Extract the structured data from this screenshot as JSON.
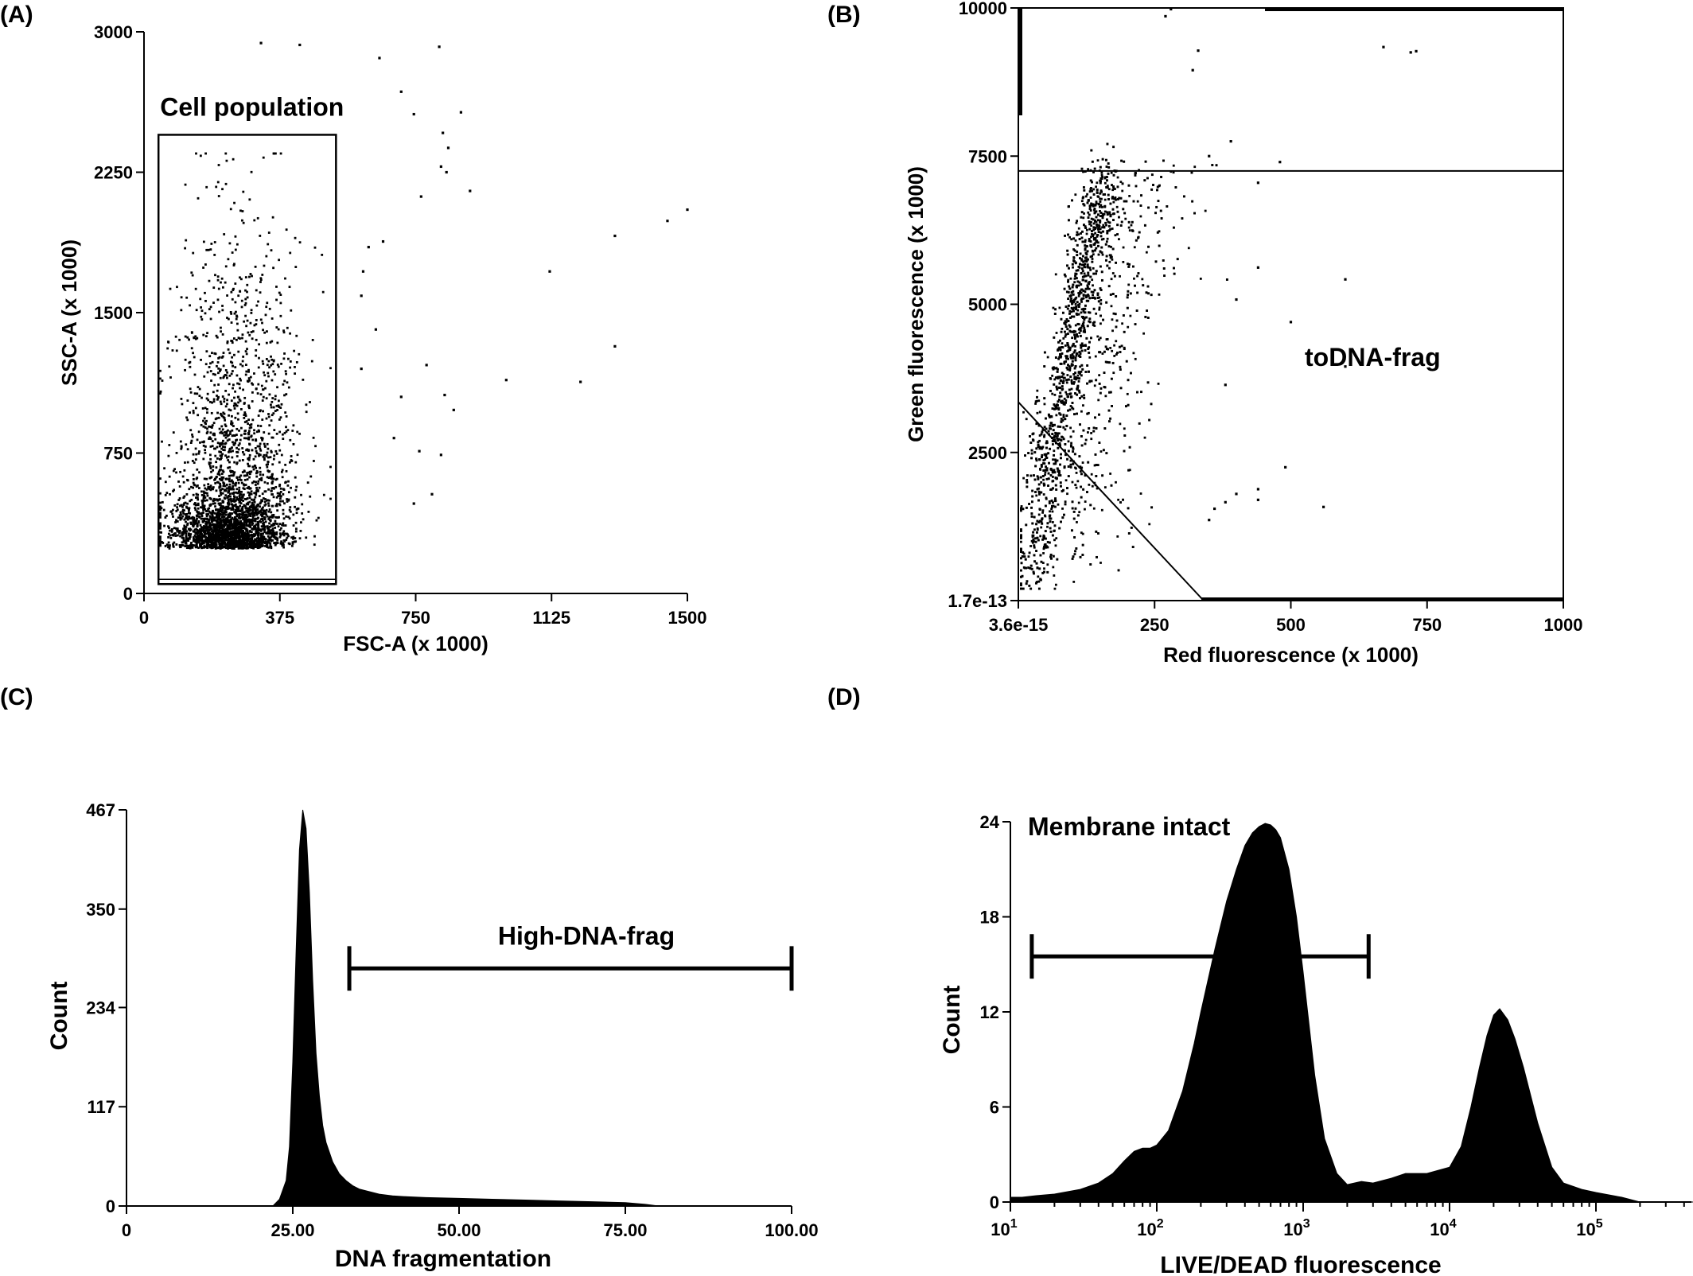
{
  "figure": {
    "panels": [
      "(A)",
      "(B)",
      "(C)",
      "(D)"
    ]
  },
  "chart_data": [
    {
      "panel": "(A)",
      "type": "scatter",
      "xlabel": "FSC-A (x 1000)",
      "ylabel": "SSC-A (x 1000)",
      "xlim": [
        0,
        1500
      ],
      "ylim": [
        0,
        3000
      ],
      "xticks": [
        "0",
        "375",
        "750",
        "1125",
        "1500"
      ],
      "yticks": [
        "0",
        "750",
        "1500",
        "2250",
        "3000"
      ],
      "gate": {
        "label": "Cell population",
        "x": [
          40,
          530
        ],
        "y": [
          50,
          2450
        ]
      },
      "cluster": {
        "x_center": 230,
        "y_center": 280,
        "n_points": 3200
      },
      "outliers": [
        [
          323,
          2940
        ],
        [
          430,
          2930
        ],
        [
          650,
          2860
        ],
        [
          815,
          2920
        ],
        [
          710,
          2680
        ],
        [
          745,
          2560
        ],
        [
          875,
          2570
        ],
        [
          825,
          2460
        ],
        [
          840,
          2380
        ],
        [
          820,
          2280
        ],
        [
          835,
          2250
        ],
        [
          765,
          2120
        ],
        [
          900,
          2150
        ],
        [
          1500,
          2050
        ],
        [
          1445,
          1990
        ],
        [
          1300,
          1910
        ],
        [
          1120,
          1720
        ],
        [
          1300,
          1320
        ],
        [
          1205,
          1130
        ],
        [
          1000,
          1140
        ],
        [
          780,
          1220
        ],
        [
          830,
          1060
        ],
        [
          855,
          980
        ],
        [
          760,
          760
        ],
        [
          795,
          530
        ],
        [
          745,
          480
        ],
        [
          690,
          830
        ],
        [
          710,
          1050
        ],
        [
          820,
          740
        ],
        [
          640,
          1410
        ],
        [
          605,
          1720
        ],
        [
          620,
          1850
        ],
        [
          600,
          1590
        ],
        [
          660,
          1880
        ],
        [
          600,
          1200
        ]
      ]
    },
    {
      "panel": "(B)",
      "type": "scatter",
      "xlabel": "Red fluorescence (x 1000)",
      "ylabel": "Green fluorescence (x 1000)",
      "xlim": [
        0,
        1000
      ],
      "ylim": [
        0,
        10000
      ],
      "xticks": [
        "3.6e-15",
        "250",
        "500",
        "750",
        "1000"
      ],
      "yticks": [
        "1.7e-13",
        "2500",
        "5000",
        "7500",
        "10000"
      ],
      "gate_line_y": 7250,
      "diagonal_gate": [
        [
          0,
          3350
        ],
        [
          340,
          0
        ]
      ],
      "region_label": "toDNA-frag",
      "outliers": [
        [
          270,
          9860
        ],
        [
          280,
          9980
        ],
        [
          670,
          9340
        ],
        [
          730,
          9270
        ],
        [
          720,
          9250
        ],
        [
          600,
          5420
        ],
        [
          560,
          1580
        ],
        [
          500,
          4700
        ],
        [
          490,
          2250
        ],
        [
          600,
          3950
        ],
        [
          480,
          7400
        ],
        [
          440,
          7050
        ],
        [
          440,
          5620
        ],
        [
          440,
          1700
        ],
        [
          440,
          1880
        ],
        [
          380,
          1660
        ],
        [
          360,
          1550
        ],
        [
          350,
          1360
        ],
        [
          400,
          1800
        ],
        [
          350,
          7500
        ],
        [
          390,
          7750
        ],
        [
          330,
          9280
        ],
        [
          320,
          8950
        ],
        [
          400,
          5080
        ],
        [
          380,
          3640
        ]
      ]
    },
    {
      "panel": "(C)",
      "type": "area",
      "xlabel": "DNA fragmentation",
      "ylabel": "Count",
      "xlim": [
        0,
        100
      ],
      "ylim": [
        0,
        467
      ],
      "xticks": [
        "0",
        "25.00",
        "50.00",
        "75.00",
        "100.00"
      ],
      "yticks": [
        "0",
        "117",
        "234",
        "350",
        "467"
      ],
      "gate": {
        "label": "High-DNA-frag",
        "x": [
          33.5,
          100
        ],
        "y": 280
      },
      "x": [
        0,
        22,
        23,
        24,
        24.5,
        25,
        25.5,
        26,
        26.5,
        27,
        27.5,
        28,
        28.5,
        29,
        29.5,
        30,
        31,
        32,
        33,
        34,
        35,
        36,
        37,
        38,
        40,
        42,
        45,
        50,
        55,
        60,
        65,
        70,
        75,
        78,
        80,
        100
      ],
      "y": [
        0,
        0,
        8,
        30,
        70,
        170,
        300,
        420,
        467,
        445,
        370,
        265,
        180,
        130,
        95,
        75,
        52,
        38,
        30,
        24,
        20,
        18,
        16,
        14,
        12,
        11,
        10,
        9,
        8,
        7,
        6,
        5,
        4,
        2,
        0,
        0
      ]
    },
    {
      "panel": "(D)",
      "type": "area",
      "xlabel": "LIVE/DEAD fluorescence",
      "ylabel": "Count",
      "x_scale": "log",
      "xlim": [
        10,
        500000
      ],
      "ylim": [
        0,
        24
      ],
      "xticks": [
        "10^1",
        "10^2",
        "10^3",
        "10^4",
        "10^5"
      ],
      "yticks": [
        "0",
        "6",
        "12",
        "18",
        "24"
      ],
      "gate": {
        "label": "Membrane intact",
        "x": [
          14,
          2800
        ],
        "y": 15.5
      },
      "x": [
        10,
        12,
        15,
        20,
        30,
        40,
        50,
        60,
        70,
        80,
        90,
        100,
        120,
        150,
        180,
        200,
        250,
        300,
        350,
        400,
        450,
        500,
        550,
        600,
        650,
        700,
        800,
        900,
        1000,
        1200,
        1400,
        1700,
        2000,
        2500,
        3000,
        4000,
        5000,
        7000,
        10000,
        12000,
        14000,
        16000,
        18000,
        20000,
        22000,
        25000,
        28000,
        32000,
        40000,
        50000,
        60000,
        80000,
        100000,
        150000,
        200000,
        500000
      ],
      "y": [
        0.3,
        0.3,
        0.4,
        0.5,
        0.8,
        1.2,
        1.8,
        2.6,
        3.2,
        3.4,
        3.4,
        3.6,
        4.5,
        7,
        10,
        12,
        16,
        19,
        21,
        22.5,
        23.3,
        23.7,
        23.9,
        23.8,
        23.5,
        23,
        21,
        18,
        14.5,
        8,
        4,
        1.8,
        1.1,
        1.3,
        1.2,
        1.5,
        1.8,
        1.8,
        2.2,
        3.5,
        6,
        8.5,
        10.5,
        11.8,
        12.2,
        11.5,
        10.3,
        8.5,
        5,
        2.2,
        1.2,
        0.8,
        0.6,
        0.3,
        0,
        0
      ]
    }
  ]
}
